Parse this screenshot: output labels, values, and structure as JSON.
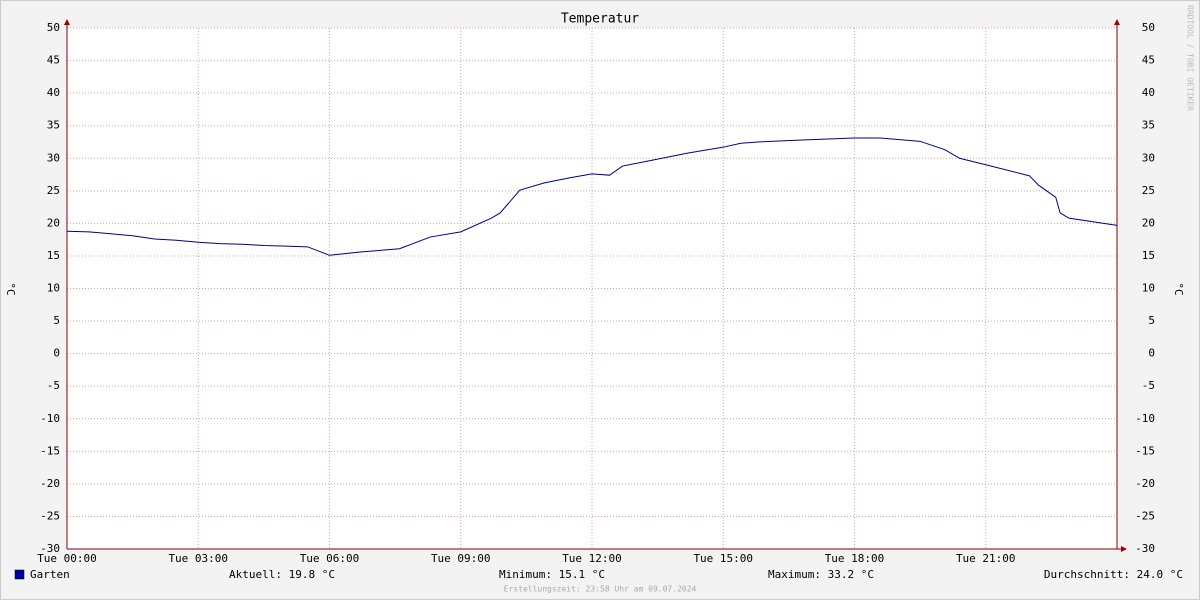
{
  "chart_data": {
    "type": "line",
    "title": "Temperatur",
    "y_label": "°C",
    "x": [
      0,
      0.5,
      1,
      1.5,
      2,
      2.5,
      3,
      3.5,
      4,
      4.5,
      5,
      5.5,
      6,
      6.7,
      7.6,
      8.3,
      9,
      9.7,
      9.9,
      10.35,
      10.9,
      11.5,
      12,
      12.4,
      12.7,
      13.6,
      14.2,
      15,
      15.4,
      15.8,
      16.8,
      18,
      18.6,
      19.5,
      20.07,
      20.4,
      21,
      22,
      22.2,
      22.6,
      22.7,
      22.9,
      24
    ],
    "series": [
      {
        "name": "Garten",
        "color": "#00008b",
        "values": [
          18.8,
          18.7,
          18.4,
          18.1,
          17.6,
          17.4,
          17.1,
          16.9,
          16.8,
          16.6,
          16.5,
          16.4,
          15.1,
          15.6,
          16.1,
          17.9,
          18.7,
          20.8,
          21.6,
          25.1,
          26.2,
          27.0,
          27.6,
          27.4,
          28.8,
          30.0,
          30.8,
          31.7,
          32.3,
          32.5,
          32.8,
          33.1,
          33.1,
          32.6,
          31.3,
          30.0,
          29.0,
          27.3,
          25.9,
          24.0,
          21.6,
          20.8,
          19.7
        ]
      }
    ],
    "xlim": [
      0,
      24
    ],
    "xticks": [
      {
        "value": 0,
        "label": "Tue 00:00"
      },
      {
        "value": 3,
        "label": "Tue 03:00"
      },
      {
        "value": 6,
        "label": "Tue 06:00"
      },
      {
        "value": 9,
        "label": "Tue 09:00"
      },
      {
        "value": 12,
        "label": "Tue 12:00"
      },
      {
        "value": 15,
        "label": "Tue 15:00"
      },
      {
        "value": 18,
        "label": "Tue 18:00"
      },
      {
        "value": 21,
        "label": "Tue 21:00"
      }
    ],
    "ylim": [
      -30,
      50
    ],
    "yticks": [
      -30,
      -25,
      -20,
      -15,
      -10,
      -5,
      0,
      5,
      10,
      15,
      20,
      25,
      30,
      35,
      40,
      45,
      50
    ],
    "grid": true,
    "legend_color": "#0000a0",
    "stats": [
      "Aktuell: 19.8 °C",
      "Minimum: 15.1 °C",
      "Maximum: 33.2 °C",
      "Durchschnitt: 24.0 °C"
    ],
    "created": "Erstellungszeit: 23:58 Uhr am 09.07.2024",
    "watermark": "RRDTOOL / TOBI OETIKER"
  }
}
